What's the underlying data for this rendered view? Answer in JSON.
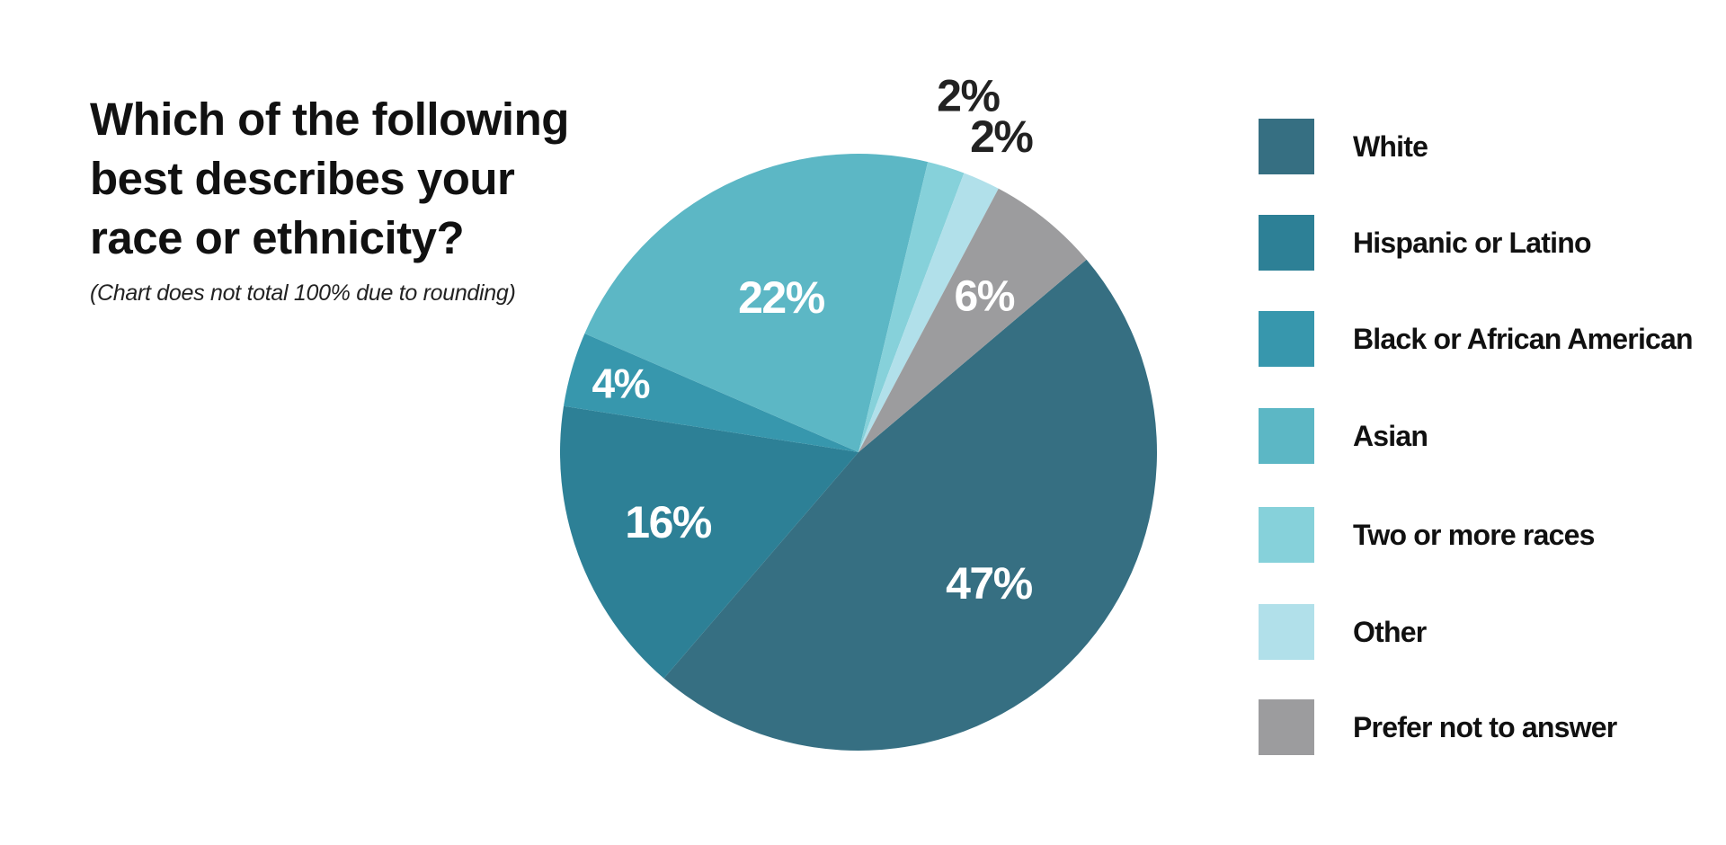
{
  "chart_data": {
    "type": "pie",
    "title_lines": [
      "Which of the following",
      "best describes your",
      "race or ethnicity?"
    ],
    "subtitle": "(Chart does not total 100% due to rounding)",
    "categories": [
      "White",
      "Hispanic or Latino",
      "Black or African American",
      "Asian",
      "Two or more races",
      "Other",
      "Prefer not to answer"
    ],
    "values": [
      47,
      16,
      4,
      22,
      2,
      2,
      6
    ],
    "data_labels": [
      "47%",
      "16%",
      "4%",
      "22%",
      "2%",
      "2%",
      "6%"
    ],
    "colors": [
      "#366f82",
      "#2d8096",
      "#3797ad",
      "#5cb7c5",
      "#86d1da",
      "#b1e0ea",
      "#9c9c9e"
    ],
    "legend_position": "right"
  }
}
